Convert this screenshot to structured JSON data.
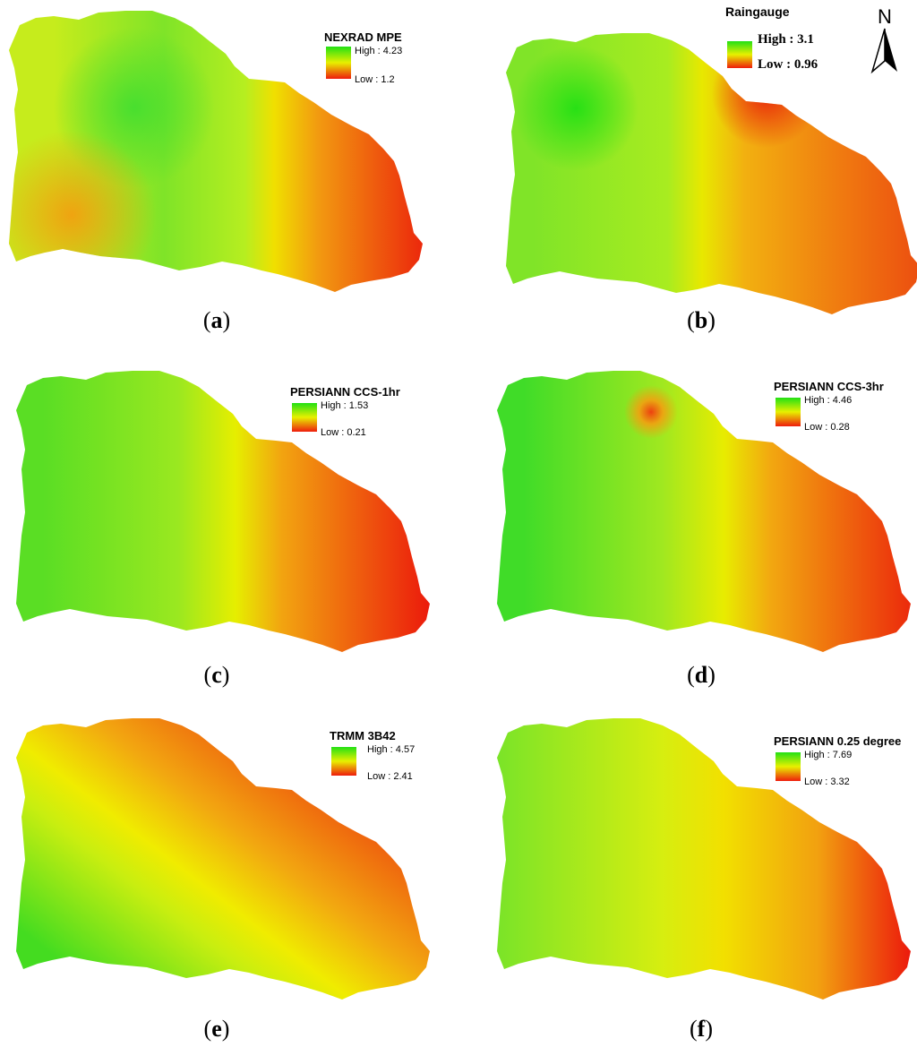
{
  "panels": [
    {
      "letter": "a",
      "legend_title": "NEXRAD MPE",
      "high": "High : 4.23",
      "low": "Low : 1.2"
    },
    {
      "letter": "b",
      "legend_title": "Raingauge",
      "high": "High : 3.1",
      "low": "Low : 0.96"
    },
    {
      "letter": "c",
      "legend_title": "PERSIANN CCS-1hr",
      "high": "High : 1.53",
      "low": "Low : 0.21"
    },
    {
      "letter": "d",
      "legend_title": "PERSIANN CCS-3hr",
      "high": "High : 4.46",
      "low": "Low : 0.28"
    },
    {
      "letter": "e",
      "legend_title": "TRMM 3B42",
      "high": "High : 4.57",
      "low": "Low : 2.41"
    },
    {
      "letter": "f",
      "legend_title": "PERSIANN 0.25 degree",
      "high": "High : 7.69",
      "low": "Low : 3.32"
    }
  ],
  "north_arrow": {
    "label": "N"
  },
  "colors": {
    "high": "#22e014",
    "mid": "#e6f000",
    "low": "#ee1c0c"
  }
}
